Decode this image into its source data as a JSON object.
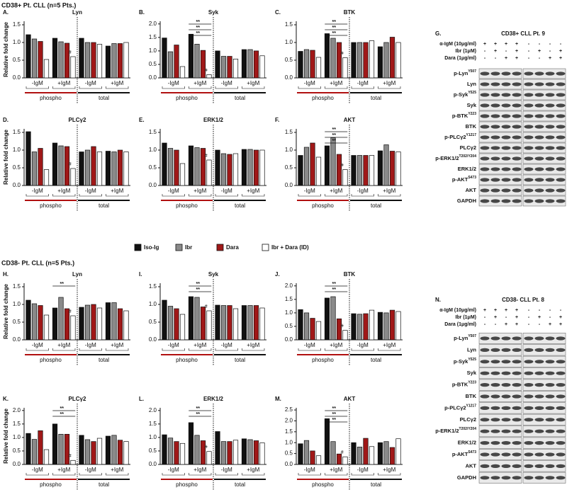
{
  "headers": [
    "CD38+ Pt. CLL (n=5 Pts.)",
    "CD38- Pt. CLL (n=5 Pts.)"
  ],
  "legend": [
    {
      "name": "Iso-Ig",
      "color": "#111111"
    },
    {
      "name": "Ibr",
      "color": "#8a8a8a"
    },
    {
      "name": "Dara",
      "color": "#a01818"
    },
    {
      "name": "Ibr + Dara (ID)",
      "color": "#ffffff"
    }
  ],
  "chart_data": [
    {
      "type": "bar",
      "panel": "A.",
      "title": "Lyn",
      "ylabel": "Relative fold change",
      "groups": [
        "-IgM",
        "+IgM",
        "-IgM",
        "+IgM"
      ],
      "sections": [
        "phospho",
        "total"
      ],
      "ylim": [
        0,
        1.6
      ],
      "yticks": [
        {
          "value": 0,
          "label": "0.0"
        },
        0.5,
        {
          "value": 1,
          "label": "1.0"
        },
        1.5
      ],
      "values": [
        [
          1.22,
          1.12,
          1.12,
          0.9
        ],
        [
          1.1,
          1.02,
          1.0,
          0.97
        ],
        [
          1.03,
          0.98,
          1.0,
          0.97
        ],
        [
          0.52,
          0.6,
          0.95,
          1.0
        ]
      ],
      "annotations": [
        "#"
      ]
    },
    {
      "type": "bar",
      "panel": "B.",
      "title": "Syk",
      "groups": [
        "-IgM",
        "+IgM",
        "-IgM",
        "+IgM"
      ],
      "sections": [
        "phospho",
        "total"
      ],
      "ylim": [
        0,
        2.1
      ],
      "yticks": [
        {
          "value": 0,
          "label": "0.0"
        },
        0.5,
        {
          "value": 1,
          "label": "1.0"
        },
        1.5,
        {
          "value": 2,
          "label": "2.0"
        }
      ],
      "values": [
        [
          1.48,
          1.62,
          1.0,
          1.05
        ],
        [
          0.97,
          1.25,
          0.8,
          1.05
        ],
        [
          1.22,
          1.02,
          0.8,
          1.0
        ],
        [
          0.42,
          0.12,
          0.7,
          0.82
        ]
      ],
      "annotations": [
        "**",
        "**",
        "**",
        "#"
      ]
    },
    {
      "type": "bar",
      "panel": "C.",
      "title": "BTK",
      "groups": [
        "-IgM",
        "+IgM",
        "-IgM",
        "+IgM"
      ],
      "sections": [
        "phospho",
        "total"
      ],
      "ylim": [
        0,
        1.6
      ],
      "yticks": [
        {
          "value": 0,
          "label": "0.0"
        },
        0.5,
        {
          "value": 1,
          "label": "1.0"
        },
        1.5
      ],
      "values": [
        [
          0.75,
          1.25,
          1.0,
          0.88
        ],
        [
          0.8,
          1.12,
          1.0,
          1.0
        ],
        [
          0.78,
          1.0,
          1.0,
          1.15
        ],
        [
          0.58,
          0.57,
          1.05,
          1.0
        ]
      ],
      "annotations": [
        "**",
        "**",
        "**",
        "#"
      ]
    },
    {
      "type": "bar",
      "panel": "D.",
      "title": "PLCγ2",
      "ylabel": "Relative fold change",
      "groups": [
        "-IgM",
        "+IgM",
        "-IgM",
        "+IgM"
      ],
      "sections": [
        "phospho",
        "total"
      ],
      "ylim": [
        0,
        1.6
      ],
      "yticks": [
        {
          "value": 0,
          "label": "0.0"
        },
        0.5,
        {
          "value": 1,
          "label": "1.0"
        },
        1.5
      ],
      "values": [
        [
          1.52,
          1.2,
          0.95,
          0.97
        ],
        [
          0.95,
          1.12,
          1.0,
          0.95
        ],
        [
          1.05,
          1.1,
          1.1,
          1.0
        ],
        [
          0.45,
          0.48,
          0.95,
          0.95
        ]
      ],
      "annotations": [
        "#"
      ]
    },
    {
      "type": "bar",
      "panel": "E.",
      "title": "ERK1/2",
      "groups": [
        "-IgM",
        "+IgM",
        "-IgM",
        "+IgM"
      ],
      "sections": [
        "phospho",
        "total"
      ],
      "ylim": [
        0,
        1.6
      ],
      "yticks": [
        {
          "value": 0,
          "label": "0.0"
        },
        0.5,
        {
          "value": 1,
          "label": "1.0"
        },
        1.5
      ],
      "values": [
        [
          1.2,
          1.12,
          1.0,
          1.02
        ],
        [
          1.05,
          1.07,
          0.9,
          1.02
        ],
        [
          1.0,
          1.05,
          0.88,
          1.0
        ],
        [
          0.62,
          0.72,
          0.9,
          1.0
        ]
      ],
      "annotations": [
        "#"
      ]
    },
    {
      "type": "bar",
      "panel": "F.",
      "title": "AKT",
      "groups": [
        "-IgM",
        "+IgM",
        "-IgM",
        "+IgM"
      ],
      "sections": [
        "phospho",
        "total"
      ],
      "ylim": [
        0,
        1.6
      ],
      "yticks": [
        {
          "value": 0,
          "label": "0.0"
        },
        0.5,
        {
          "value": 1,
          "label": "1.0"
        },
        1.5
      ],
      "values": [
        [
          0.85,
          1.12,
          0.85,
          0.98
        ],
        [
          1.08,
          1.35,
          0.85,
          1.15
        ],
        [
          1.2,
          0.88,
          0.85,
          0.97
        ],
        [
          0.8,
          0.45,
          0.85,
          0.95
        ]
      ],
      "annotations": [
        "**",
        "**",
        "**",
        "#"
      ]
    },
    {
      "type": "bar",
      "panel": "H.",
      "title": "Lyn",
      "ylabel": "Relative fold change",
      "groups": [
        "-IgM",
        "+IgM",
        "-IgM",
        "+IgM"
      ],
      "sections": [
        "phospho",
        "total"
      ],
      "ylim": [
        0,
        1.6
      ],
      "yticks": [
        {
          "value": 0,
          "label": "0.0"
        },
        0.5,
        {
          "value": 1,
          "label": "1.0"
        },
        1.5
      ],
      "values": [
        [
          1.12,
          0.9,
          0.92,
          1.05
        ],
        [
          1.02,
          1.2,
          0.98,
          1.05
        ],
        [
          0.97,
          0.88,
          1.0,
          0.88
        ],
        [
          0.7,
          0.68,
          0.9,
          0.82
        ]
      ],
      "annotations": [
        "**",
        "#"
      ]
    },
    {
      "type": "bar",
      "panel": "I.",
      "title": "Syk",
      "groups": [
        "-IgM",
        "+IgM",
        "-IgM",
        "+IgM"
      ],
      "sections": [
        "phospho",
        "total"
      ],
      "ylim": [
        0,
        1.6
      ],
      "yticks": [
        {
          "value": 0,
          "label": "0.0"
        },
        0.5,
        {
          "value": 1,
          "label": "1.0"
        },
        1.5
      ],
      "values": [
        [
          1.12,
          1.22,
          0.98,
          0.97
        ],
        [
          0.95,
          1.2,
          0.97,
          0.97
        ],
        [
          0.88,
          0.93,
          0.97,
          0.97
        ],
        [
          0.72,
          0.82,
          0.88,
          0.9
        ]
      ],
      "annotations": [
        "**",
        "**",
        "#"
      ]
    },
    {
      "type": "bar",
      "panel": "J.",
      "title": "BTK",
      "groups": [
        "-IgM",
        "+IgM",
        "-IgM",
        "+IgM"
      ],
      "sections": [
        "phospho",
        "total"
      ],
      "ylim": [
        0,
        2.1
      ],
      "yticks": [
        {
          "value": 0,
          "label": "0.0"
        },
        0.5,
        {
          "value": 1,
          "label": "1.0"
        },
        1.5,
        {
          "value": 2,
          "label": "2.0"
        }
      ],
      "values": [
        [
          1.12,
          1.55,
          0.97,
          1.02
        ],
        [
          1.0,
          1.6,
          0.95,
          1.0
        ],
        [
          0.8,
          0.78,
          0.97,
          1.1
        ],
        [
          0.68,
          0.35,
          1.1,
          1.05
        ]
      ],
      "annotations": [
        "**",
        "**",
        "#"
      ]
    },
    {
      "type": "bar",
      "panel": "K.",
      "title": "PLCγ2",
      "ylabel": "Relative fold change",
      "groups": [
        "-IgM",
        "+IgM",
        "-IgM",
        "+IgM"
      ],
      "sections": [
        "phospho",
        "total"
      ],
      "ylim": [
        0,
        2.1
      ],
      "yticks": [
        {
          "value": 0,
          "label": "0.0"
        },
        0.5,
        {
          "value": 1,
          "label": "1.0"
        },
        1.5,
        {
          "value": 2,
          "label": "2.0"
        }
      ],
      "values": [
        [
          1.15,
          1.5,
          1.08,
          1.05
        ],
        [
          0.93,
          1.12,
          0.92,
          1.08
        ],
        [
          1.25,
          1.12,
          0.85,
          0.9
        ],
        [
          0.55,
          0.15,
          0.97,
          0.85
        ]
      ],
      "annotations": [
        "**",
        "**",
        "#"
      ]
    },
    {
      "type": "bar",
      "panel": "L.",
      "title": "ERK1/2",
      "groups": [
        "-IgM",
        "+IgM",
        "-IgM",
        "+IgM"
      ],
      "sections": [
        "phospho",
        "total"
      ],
      "ylim": [
        0,
        2.1
      ],
      "yticks": [
        {
          "value": 0,
          "label": "0.0"
        },
        0.5,
        {
          "value": 1,
          "label": "1.0"
        },
        1.5,
        {
          "value": 2,
          "label": "2.0"
        }
      ],
      "values": [
        [
          1.1,
          1.55,
          1.22,
          0.95
        ],
        [
          0.98,
          1.08,
          0.85,
          0.92
        ],
        [
          0.85,
          0.88,
          0.85,
          0.88
        ],
        [
          0.78,
          0.48,
          0.9,
          0.8
        ]
      ],
      "annotations": [
        "**",
        "**",
        "#"
      ]
    },
    {
      "type": "bar",
      "panel": "M.",
      "title": "AKT",
      "groups": [
        "-IgM",
        "+IgM",
        "-IgM",
        "+IgM"
      ],
      "sections": [
        "phospho",
        "total"
      ],
      "ylim": [
        0,
        2.6
      ],
      "yticks": [
        {
          "value": 0,
          "label": "0.0"
        },
        0.5,
        {
          "value": 1,
          "label": "1.0"
        },
        1.5,
        {
          "value": 2,
          "label": "2.0"
        },
        2.5
      ],
      "values": [
        [
          0.95,
          2.1,
          1.0,
          1.0
        ],
        [
          1.1,
          1.05,
          0.8,
          1.05
        ],
        [
          0.62,
          0.48,
          1.2,
          0.78
        ],
        [
          0.4,
          0.35,
          0.82,
          1.18
        ]
      ],
      "annotations": [
        "**",
        "**",
        "**",
        "#"
      ]
    }
  ],
  "blots": [
    {
      "panel": "G.",
      "title": "CD38+ CLL Pt. 9",
      "conditions": [
        {
          "name": "α-IgM (10μg/ml)",
          "lanes": [
            "+",
            "+",
            "+",
            "+",
            "-",
            "-",
            "-",
            "-"
          ]
        },
        {
          "name": "Ibr (1μM)",
          "lanes": [
            "-",
            "+",
            "-",
            "+",
            "-",
            "+",
            "-",
            "+"
          ]
        },
        {
          "name": "Dara (1μg/ml)",
          "lanes": [
            "-",
            "-",
            "+",
            "+",
            "-",
            "-",
            "+",
            "+"
          ]
        }
      ],
      "rows": [
        {
          "name": "p-Lyn",
          "sup": "Y507"
        },
        {
          "name": "Lyn"
        },
        {
          "name": "p-Syk",
          "sup": "Y525"
        },
        {
          "name": "Syk"
        },
        {
          "name": "p-BTK",
          "sup": "Y223"
        },
        {
          "name": "BTK"
        },
        {
          "name": "p-PLCγ2",
          "sup": "Y1217"
        },
        {
          "name": "PLCγ2"
        },
        {
          "name": "p-ERK1/2",
          "sup": "T202/Y204"
        },
        {
          "name": "ERK1/2"
        },
        {
          "name": "p-AKT",
          "sup": "S473"
        },
        {
          "name": "AKT"
        },
        {
          "name": "GAPDH"
        }
      ]
    },
    {
      "panel": "N.",
      "title": "CD38- CLL Pt. 8",
      "conditions": [
        {
          "name": "α-IgM (10μg/ml)",
          "lanes": [
            "+",
            "+",
            "+",
            "+",
            "-",
            "-",
            "-",
            "-"
          ]
        },
        {
          "name": "Ibr (1μM)",
          "lanes": [
            "-",
            "+",
            "-",
            "+",
            "-",
            "+",
            "-",
            "+"
          ]
        },
        {
          "name": "Dara (1μg/ml)",
          "lanes": [
            "-",
            "-",
            "+",
            "+",
            "-",
            "-",
            "+",
            "+"
          ]
        }
      ],
      "rows": [
        {
          "name": "p-Lyn",
          "sup": "Y507"
        },
        {
          "name": "Lyn"
        },
        {
          "name": "p-Syk",
          "sup": "Y525"
        },
        {
          "name": "Syk"
        },
        {
          "name": "p-BTK",
          "sup": "Y223"
        },
        {
          "name": "BTK"
        },
        {
          "name": "p-PLCγ2",
          "sup": "Y1217"
        },
        {
          "name": "PLCγ2"
        },
        {
          "name": "p-ERK1/2",
          "sup": "T202/Y204"
        },
        {
          "name": "ERK1/2"
        },
        {
          "name": "p-AKT",
          "sup": "S473"
        },
        {
          "name": "AKT"
        },
        {
          "name": "GAPDH"
        }
      ]
    }
  ]
}
